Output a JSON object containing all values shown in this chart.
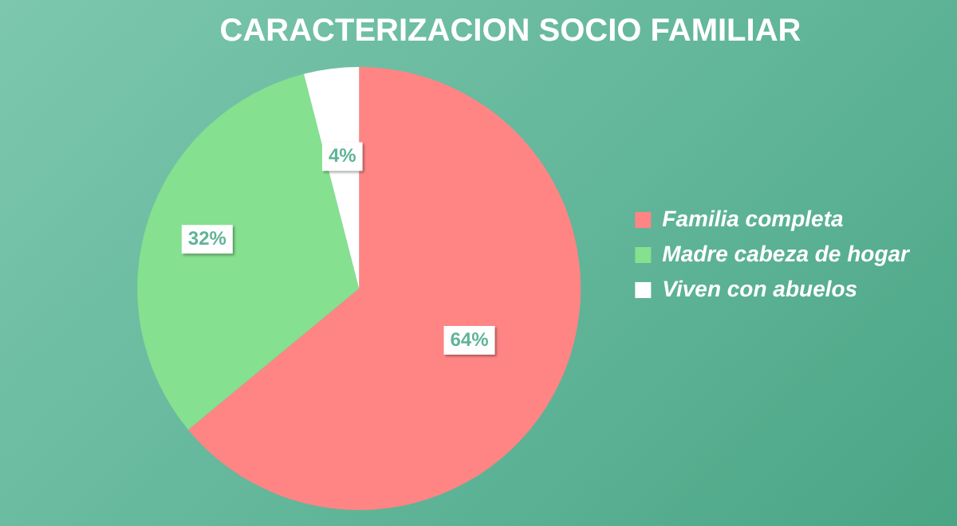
{
  "chart_data": {
    "type": "pie",
    "title": "CARACTERIZACION SOCIO FAMILIAR",
    "categories": [
      "Familia completa",
      "Madre cabeza de hogar",
      "Viven con abuelos"
    ],
    "values": [
      64,
      32,
      4
    ],
    "colors": [
      "#ff8585",
      "#85e08f",
      "#ffffff"
    ],
    "value_labels": [
      "64%",
      "32%",
      "4%"
    ],
    "legend": "right"
  }
}
